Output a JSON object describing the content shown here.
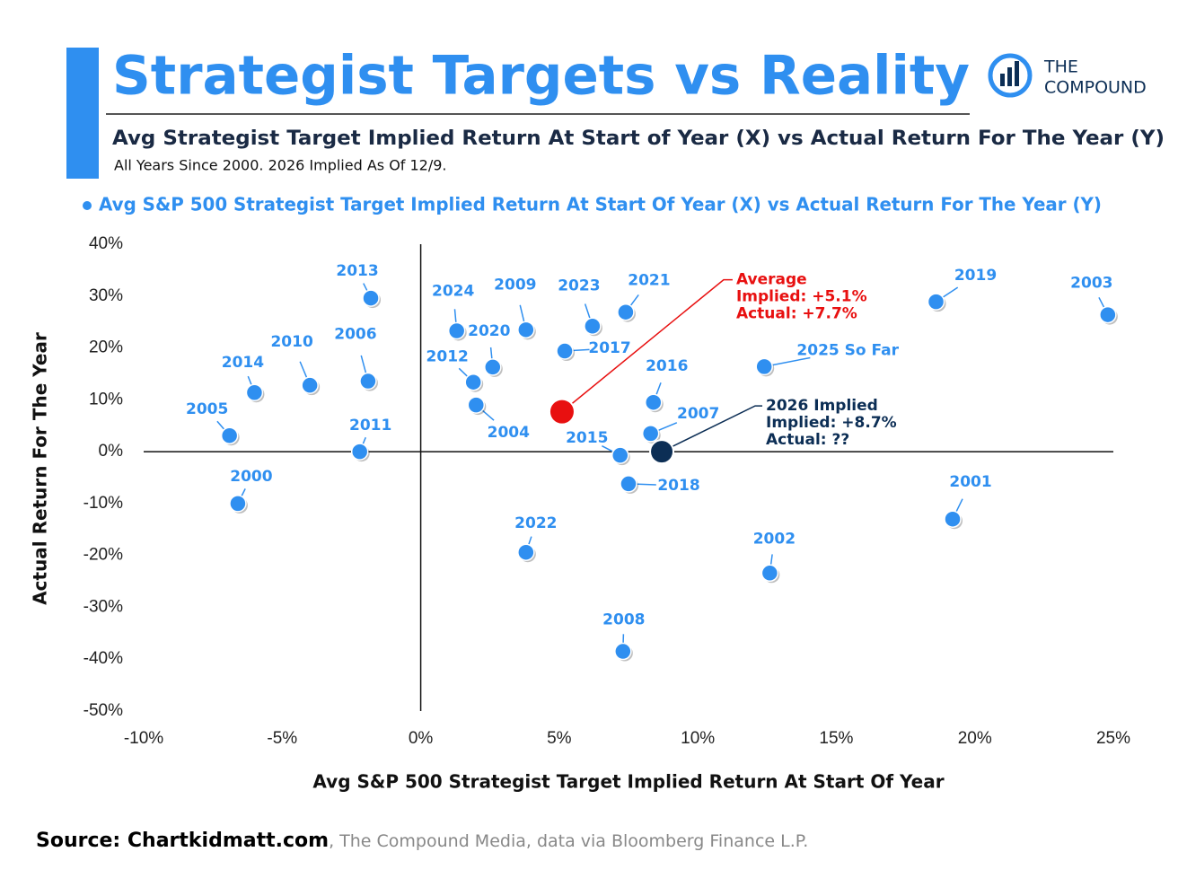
{
  "logo": {
    "line1": "THE",
    "line2": "COMPOUND"
  },
  "source": {
    "bold": "Source: Chartkidmatt.com",
    "rest": ", The Compound Media, data via Bloomberg Finance L.P."
  },
  "chart_data": {
    "type": "scatter",
    "title": "Strategist Targets vs Reality",
    "subtitle": "Avg Strategist Target Implied Return At Start of Year (X) vs Actual Return For The Year (Y)",
    "note": "All Years Since 2000. 2026 Implied As Of 12/9.",
    "x_label": "Avg S&P 500 Strategist Target Implied Return At Start Of Year",
    "y_label": "Actual Return For The Year",
    "xlim": [
      -10,
      25
    ],
    "ylim": [
      -50,
      40
    ],
    "xticks": [
      {
        "value": -10,
        "label": "-10%"
      },
      {
        "value": -5,
        "label": "-5%"
      },
      {
        "value": 0,
        "label": "0%"
      },
      {
        "value": 5,
        "label": "5%"
      },
      {
        "value": 10,
        "label": "10%"
      },
      {
        "value": 15,
        "label": "15%"
      },
      {
        "value": 20,
        "label": "20%"
      },
      {
        "value": 25,
        "label": "25%"
      }
    ],
    "yticks": [
      {
        "value": 40,
        "label": "40%"
      },
      {
        "value": 30,
        "label": "30%"
      },
      {
        "value": 20,
        "label": "20%"
      },
      {
        "value": 10,
        "label": "10%"
      },
      {
        "value": 0,
        "label": "0%"
      },
      {
        "value": -10,
        "label": "-10%"
      },
      {
        "value": -20,
        "label": "-20%"
      },
      {
        "value": -30,
        "label": "-30%"
      },
      {
        "value": -40,
        "label": "-40%"
      },
      {
        "value": -50,
        "label": "-50%"
      }
    ],
    "series": [
      {
        "name": "Avg S&P 500 Strategist Target Implied Return At Start Of Year (X) vs Actual Return For The Year (Y)",
        "color": "#2f8ff0",
        "labels": [
          "2000",
          "2001",
          "2002",
          "2003",
          "2004",
          "2005",
          "2006",
          "2007",
          "2008",
          "2009",
          "2010",
          "2011",
          "2012",
          "2013",
          "2014",
          "2015",
          "2016",
          "2017",
          "2018",
          "2019",
          "2020",
          "2021",
          "2022",
          "2023",
          "2024",
          "2025 So Far"
        ],
        "x": [
          -6.6,
          19.2,
          12.6,
          24.8,
          2.0,
          -6.9,
          -1.9,
          8.3,
          7.3,
          3.8,
          -4.0,
          -2.2,
          1.9,
          -1.8,
          -6.0,
          7.2,
          8.4,
          5.2,
          7.5,
          18.6,
          2.6,
          7.4,
          3.8,
          6.2,
          1.3,
          12.4
        ],
        "values": [
          -10.0,
          -13.0,
          -23.4,
          26.4,
          9.0,
          3.1,
          13.6,
          3.5,
          -38.5,
          23.5,
          12.8,
          0.0,
          13.4,
          29.6,
          11.4,
          -0.7,
          9.5,
          19.4,
          -6.2,
          28.9,
          16.3,
          26.9,
          -19.4,
          24.2,
          23.3,
          16.4
        ]
      }
    ],
    "annotations": [
      {
        "lines": [
          "Average",
          "Implied: +5.1%",
          "Actual: +7.7%"
        ],
        "x": 5.1,
        "y": 7.7,
        "color": "#e81010"
      },
      {
        "lines": [
          "2026 Implied",
          "Implied: +8.7%",
          "Actual: ??"
        ],
        "x": 8.7,
        "y": 0,
        "color": "#0c2e55"
      }
    ]
  }
}
